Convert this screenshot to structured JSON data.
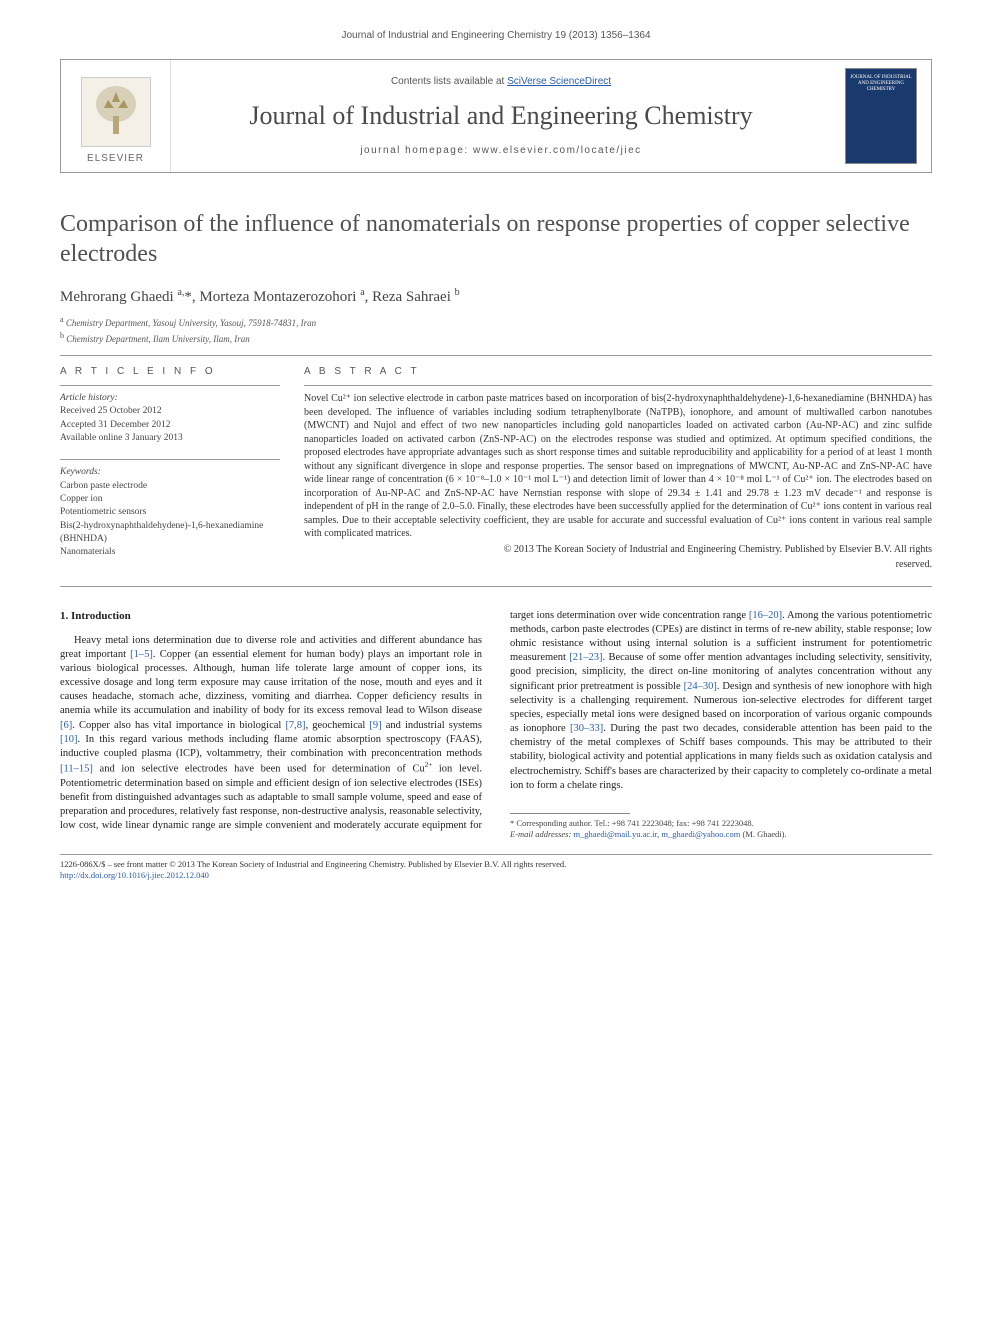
{
  "page": {
    "running_header": "Journal of Industrial and Engineering Chemistry 19 (2013) 1356–1364"
  },
  "masthead": {
    "publisher_name": "ELSEVIER",
    "contents_prefix": "Contents lists available at ",
    "contents_link": "SciVerse ScienceDirect",
    "journal_title": "Journal of Industrial and Engineering Chemistry",
    "homepage_prefix": "journal homepage: ",
    "homepage_url": "www.elsevier.com/locate/jiec",
    "cover_text": "JOURNAL OF INDUSTRIAL AND ENGINEERING CHEMISTRY"
  },
  "article": {
    "title": "Comparison of the influence of nanomaterials on response properties of copper selective electrodes",
    "authors_html": "Mehrorang Ghaedi <sup>a,</sup><span class=\"corr-star\">*</span>, Morteza Montazerozohori <sup>a</sup>, Reza Sahraei <sup>b</sup>",
    "affiliations": [
      {
        "sup": "a",
        "text": "Chemistry Department, Yasouj University, Yasouj, 75918-74831, Iran"
      },
      {
        "sup": "b",
        "text": "Chemistry Department, Ilam University, Ilam, Iran"
      }
    ]
  },
  "article_info": {
    "heading": "A R T I C L E   I N F O",
    "history_label": "Article history:",
    "received": "Received 25 October 2012",
    "accepted": "Accepted 31 December 2012",
    "online": "Available online 3 January 2013",
    "keywords_label": "Keywords:",
    "keywords": [
      "Carbon paste electrode",
      "Copper ion",
      "Potentiometric sensors",
      "Bis(2-hydroxynaphthaldehydene)-1,6-hexanediamine (BHNHDA)",
      "Nanomaterials"
    ]
  },
  "abstract": {
    "heading": "A B S T R A C T",
    "text": "Novel Cu²⁺ ion selective electrode in carbon paste matrices based on incorporation of bis(2-hydroxynaphthaldehydene)-1,6-hexanediamine (BHNHDA) has been developed. The influence of variables including sodium tetraphenylborate (NaTPB), ionophore, and amount of multiwalled carbon nanotubes (MWCNT) and Nujol and effect of two new nanoparticles including gold nanoparticles loaded on activated carbon (Au-NP-AC) and zinc sulfide nanoparticles loaded on activated carbon (ZnS-NP-AC) on the electrodes response was studied and optimized. At optimum specified conditions, the proposed electrodes have appropriate advantages such as short response times and suitable reproducibility and applicability for a period of at least 1 month without any significant divergence in slope and response properties. The sensor based on impregnations of MWCNT, Au-NP-AC and ZnS-NP-AC have wide linear range of concentration (6 × 10⁻⁸–1.0 × 10⁻¹ mol L⁻¹) and detection limit of lower than 4 × 10⁻⁸ mol L⁻¹ of Cu²⁺ ion. The electrodes based on incorporation of Au-NP-AC and ZnS-NP-AC have Nernstian response with slope of 29.34 ± 1.41 and 29.78 ± 1.23 mV decade⁻¹ and response is independent of pH in the range of 2.0–5.0. Finally, these electrodes have been successfully applied for the determination of Cu²⁺ ions content in various real samples. Due to their acceptable selectivity coefficient, they are usable for accurate and successful evaluation of Cu²⁺ ions content in various real sample with complicated matrices.",
    "copyright1": "© 2013 The Korean Society of Industrial and Engineering Chemistry. Published by Elsevier B.V. All rights",
    "copyright2": "reserved."
  },
  "body": {
    "section_heading": "1. Introduction",
    "col1_para": "Heavy metal ions determination due to diverse role and activities and different abundance has great important [1–5]. Copper (an essential element for human body) plays an important role in various biological processes. Although, human life tolerate large amount of copper ions, its excessive dosage and long term exposure may cause irritation of the nose, mouth and eyes and it causes headache, stomach ache, dizziness, vomiting and diarrhea. Copper deficiency results in anemia while its accumulation and inability of body for its excess removal lead to Wilson disease [6]. Copper also has vital importance in biological [7,8], geochemical [9] and industrial systems [10]. In this regard various methods including flame atomic absorption spectroscopy (FAAS), inductive coupled plasma (ICP), voltammetry, their combination with preconcentration methods [11–15] and ion selective electrodes have been used for determination of Cu²⁺ ion level. Potentiometric determination based on simple and efficient design of ion selective electrodes (ISEs) benefit from distinguished advantages such as",
    "col2_para": "adaptable to small sample volume, speed and ease of preparation and procedures, relatively fast response, non-destructive analysis, reasonable selectivity, low cost, wide linear dynamic range are simple convenient and moderately accurate equipment for target ions determination over wide concentration range [16–20]. Among the various potentiometric methods, carbon paste electrodes (CPEs) are distinct in terms of re-new ability, stable response; low ohmic resistance without using internal solution is a sufficient instrument for potentiometric measurement [21–23]. Because of some offer mention advantages including selectivity, sensitivity, good precision, simplicity, the direct on-line monitoring of analytes concentration without any significant prior pretreatment is possible [24–30]. Design and synthesis of new ionophore with high selectivity is a challenging requirement. Numerous ion-selective electrodes for different target species, especially metal ions were designed based on incorporation of various organic compounds as ionophore [30–33]. During the past two decades, considerable attention has been paid to the chemistry of the metal complexes of Schiff bases compounds. This may be attributed to their stability, biological activity and potential applications in many fields such as oxidation catalysis and electrochemistry. Schiff's bases are characterized by their capacity to completely co-ordinate a metal ion to form a chelate rings.",
    "refs": {
      "r1": "[1–5]",
      "r6": "[6]",
      "r7": "[7,8]",
      "r9": "[9]",
      "r10": "[10]",
      "r11": "[11–15]",
      "r16": "[16–20]",
      "r21": "[21–23]",
      "r24": "[24–30]",
      "r30": "[30–33]"
    }
  },
  "footnote": {
    "corr_label": "* Corresponding author. Tel.: +98 741 2223048; fax: +98 741 2223048.",
    "email_label": "E-mail addresses: ",
    "email1": "m_ghaedi@mail.yu.ac.ir",
    "email2": "m_ghaedi@yahoo.com",
    "email_suffix": " (M. Ghaedi)."
  },
  "footer": {
    "left1": "1226-086X/$ – see front matter © 2013 The Korean Society of Industrial and Engineering Chemistry. Published by Elsevier B.V. All rights reserved.",
    "doi": "http://dx.doi.org/10.1016/j.jiec.2012.12.040"
  },
  "colors": {
    "link": "#2a5db0",
    "text": "#333333",
    "heading": "#505050",
    "rule": "#999999",
    "cover_bg": "#1a3a6e"
  }
}
